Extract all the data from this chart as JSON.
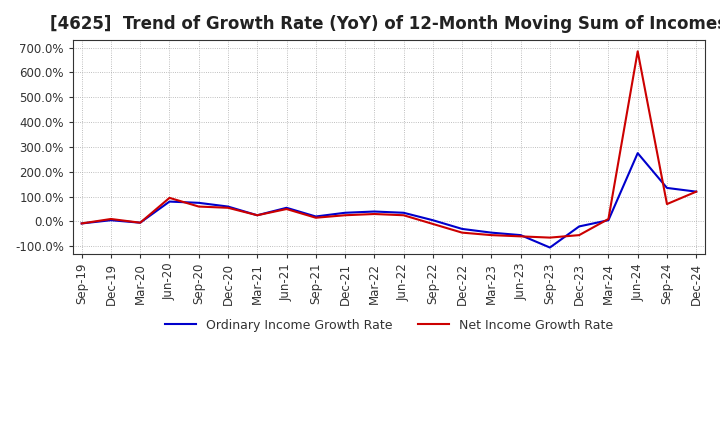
{
  "title": "[4625]  Trend of Growth Rate (YoY) of 12-Month Moving Sum of Incomes",
  "title_fontsize": 12,
  "ylim": [
    -130,
    730
  ],
  "yticks": [
    -100,
    0,
    100,
    200,
    300,
    400,
    500,
    600,
    700
  ],
  "legend_labels": [
    "Ordinary Income Growth Rate",
    "Net Income Growth Rate"
  ],
  "line_colors": [
    "#0000cc",
    "#cc0000"
  ],
  "background_color": "#ffffff",
  "grid_color": "#aaaaaa",
  "dates": [
    "Sep-19",
    "Dec-19",
    "Mar-20",
    "Jun-20",
    "Sep-20",
    "Dec-20",
    "Mar-21",
    "Jun-21",
    "Sep-21",
    "Dec-21",
    "Mar-22",
    "Jun-22",
    "Sep-22",
    "Dec-22",
    "Mar-23",
    "Jun-23",
    "Sep-23",
    "Dec-23",
    "Mar-24",
    "Jun-24",
    "Sep-24",
    "Dec-24"
  ],
  "ordinary_income": [
    -8,
    5,
    -5,
    80,
    75,
    60,
    25,
    55,
    20,
    35,
    40,
    35,
    5,
    -30,
    -45,
    -55,
    -105,
    -20,
    5,
    275,
    135,
    120
  ],
  "net_income": [
    -8,
    10,
    -5,
    95,
    60,
    55,
    25,
    50,
    15,
    25,
    30,
    25,
    -10,
    -45,
    -55,
    -60,
    -65,
    -55,
    10,
    685,
    70,
    120
  ]
}
